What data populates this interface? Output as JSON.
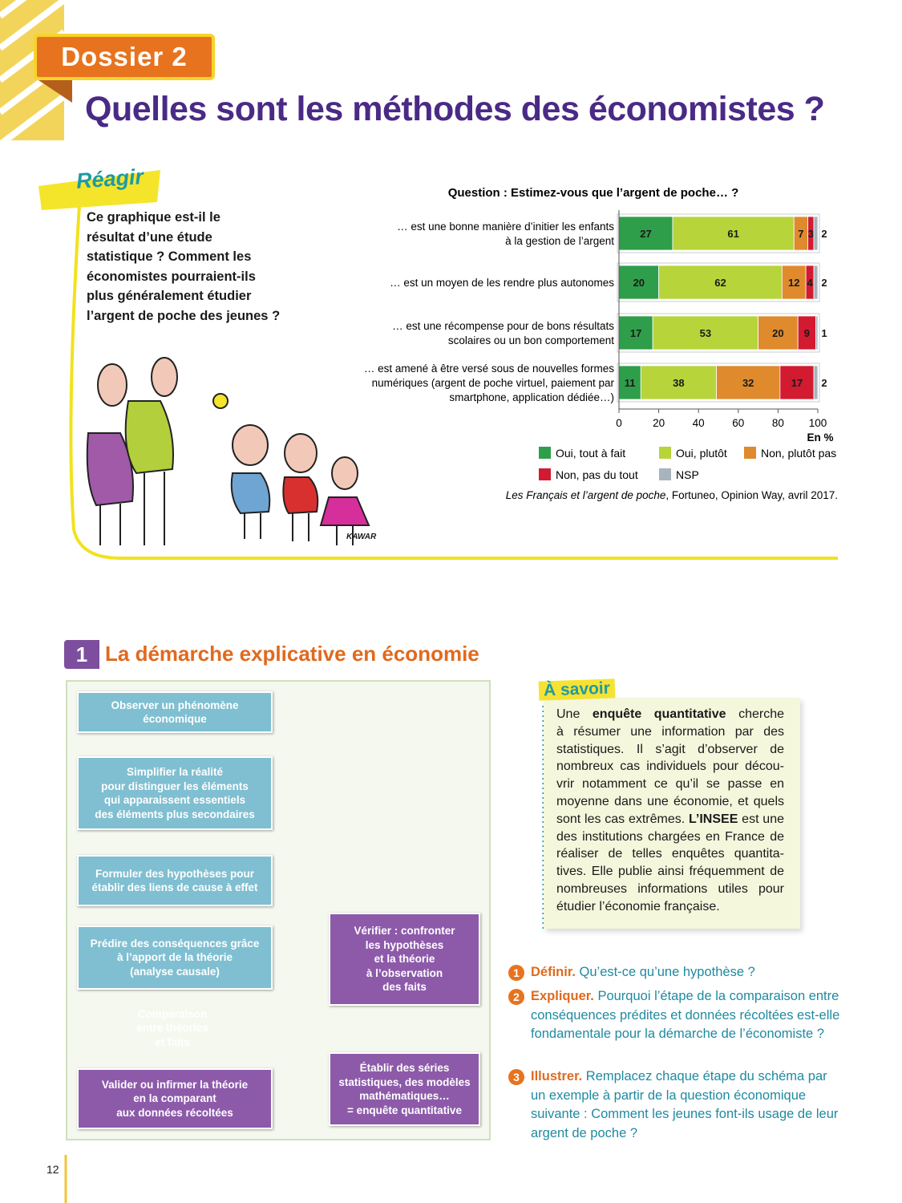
{
  "header": {
    "dossier": "Dossier 2",
    "title": "Quelles sont les méthodes des économistes ?"
  },
  "reagir": {
    "label": "Réagir",
    "question_lines": [
      "Ce graphique est-il le",
      "résultat d’une étude",
      "statistique ? Comment les",
      "économistes pourraient-ils",
      "plus généralement étudier",
      "l’argent de poche des jeunes ?"
    ],
    "illustration_signature": "KAWAR"
  },
  "chart_data": {
    "type": "stacked-bar-horizontal",
    "title": "Question : Estimez-vous que l’argent de poche… ?",
    "categories": [
      [
        "… est une bonne manière d’initier les enfants",
        "à la gestion de l’argent"
      ],
      [
        "… est un moyen de les rendre plus autonomes"
      ],
      [
        "… est une récompense pour de bons résultats",
        "scolaires ou un bon comportement"
      ],
      [
        "… est amené à être versé sous de nouvelles formes",
        "numériques (argent de poche virtuel, paiement par",
        "smartphone, application dédiée…)"
      ]
    ],
    "series": [
      {
        "name": "Oui, tout à fait",
        "color": "#2f9e4a",
        "values": [
          27,
          20,
          17,
          11
        ]
      },
      {
        "name": "Oui, plutôt",
        "color": "#b7d43a",
        "values": [
          61,
          62,
          53,
          38
        ]
      },
      {
        "name": "Non, plutôt pas",
        "color": "#df8a2c",
        "values": [
          7,
          12,
          20,
          32
        ]
      },
      {
        "name": "Non, pas du tout",
        "color": "#d21a30",
        "values": [
          3,
          4,
          9,
          17
        ]
      },
      {
        "name": "NSP",
        "color": "#a8b3bb",
        "values": [
          2,
          2,
          1,
          2
        ]
      }
    ],
    "xlim": [
      0,
      100
    ],
    "xticks": [
      0,
      20,
      40,
      60,
      80,
      100
    ],
    "xlabel": "En %",
    "legend_position": "bottom",
    "grid": false,
    "source": {
      "title": "Les Français et l’argent de poche",
      "rest": ", Fortuneo, Opinion Way, avril 2017."
    }
  },
  "section": {
    "number": "1",
    "title": "La démarche explicative en économie"
  },
  "flowchart": {
    "nodes": [
      [
        "Observer un phénomène",
        "économique"
      ],
      [
        "Simplifier la réalité",
        "pour distinguer les éléments",
        "qui apparaissent essentiels",
        "des éléments plus secondaires"
      ],
      [
        "Formuler des hypothèses pour",
        "établir des liens de cause à effet"
      ],
      [
        "Prédire des conséquences grâce",
        "à l’apport de la théorie",
        "(analyse causale)"
      ],
      [
        "Comparaison",
        "entre théories",
        "et faits"
      ],
      [
        "Vérifier : confronter",
        "les hypothèses",
        "et la théorie",
        "à l’observation",
        "des faits"
      ],
      [
        "Établir des séries",
        "statistiques, des modèles",
        "mathématiques…",
        "= enquête quantitative"
      ],
      [
        "Valider ou infirmer la théorie",
        "en la comparant",
        "aux données récoltées"
      ]
    ]
  },
  "a_savoir": {
    "title": "À savoir",
    "lines": [
      [
        "Une ",
        "enquête quantitative",
        " cherche"
      ],
      "à résumer une information par des",
      "statistiques. Il s’agit d’observer de",
      "nombreux cas individuels pour décou-",
      "vrir notamment ce qu’il se passe en",
      "moyenne dans une économie, et quels",
      [
        "sont les cas extrêmes. ",
        "L’INSEE",
        " est une"
      ],
      "des institutions chargées en France de",
      "réaliser de telles enquêtes quantita-",
      "tives. Elle publie ainsi fréquemment de",
      "nombreuses informations utiles pour",
      "étudier l’économie française."
    ]
  },
  "questions": [
    {
      "number": "1",
      "label": "Définir.",
      "text": "Qu’est-ce qu’une hypothèse ?"
    },
    {
      "number": "2",
      "label": "Expliquer.",
      "text": "Pourquoi l’étape de la comparaison entre conséquences prédites et données récoltées est-elle fondamentale pour la démarche de l’économiste ?"
    },
    {
      "number": "3",
      "label": "Illustrer.",
      "text": "Remplacez chaque étape du schéma par un exemple à partir de la question économique suivante : Comment les jeunes font-ils usage de leur argent de poche ?"
    }
  ],
  "page_number": "12"
}
